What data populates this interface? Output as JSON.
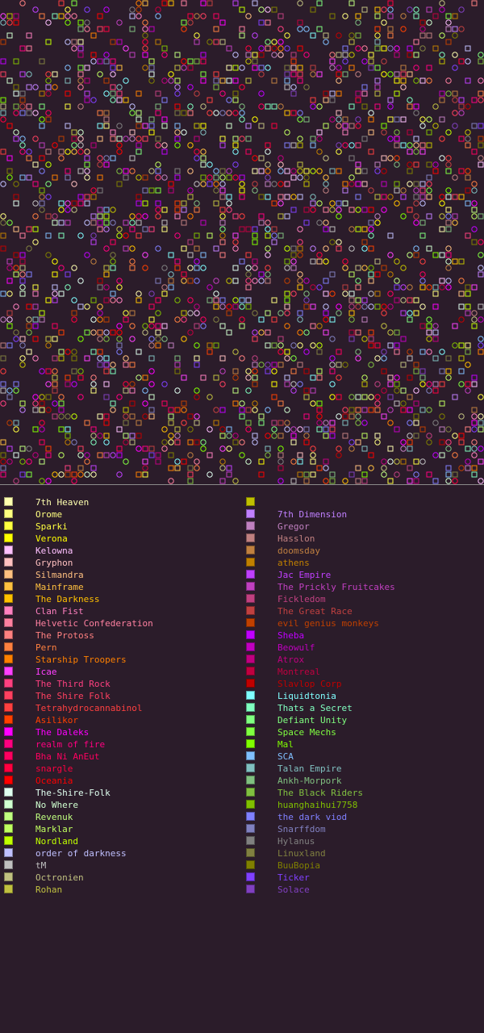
{
  "map": {
    "background": "#2b1c2a",
    "grid_columns": 75,
    "grid_rows": 75
  },
  "legend": {
    "left": [
      {
        "name": "7th Heaven",
        "color": "#ffffb0"
      },
      {
        "name": "Orome",
        "color": "#ffff80"
      },
      {
        "name": "Sparki",
        "color": "#ffff40"
      },
      {
        "name": "Verona",
        "color": "#ffff00"
      },
      {
        "name": "Kelowna",
        "color": "#ffc0ff"
      },
      {
        "name": "Gryphon",
        "color": "#ffc0c0"
      },
      {
        "name": "Silmandra",
        "color": "#ffc080"
      },
      {
        "name": "Mainframe",
        "color": "#ffc040"
      },
      {
        "name": "The Darkness",
        "color": "#ffc000"
      },
      {
        "name": "Clan Fist",
        "color": "#ff80c0"
      },
      {
        "name": "Helvetic Confederation",
        "color": "#ff80a0"
      },
      {
        "name": "The Protoss",
        "color": "#ff8080"
      },
      {
        "name": "Pern",
        "color": "#ff8040"
      },
      {
        "name": "Starship Troopers",
        "color": "#ff8000"
      },
      {
        "name": "Icae",
        "color": "#ff40ff"
      },
      {
        "name": "The Third Rock",
        "color": "#ff4080"
      },
      {
        "name": "The Shire Folk",
        "color": "#ff4060"
      },
      {
        "name": "Tetrahydrocannabinol",
        "color": "#ff4040"
      },
      {
        "name": "Asilikor",
        "color": "#ff4000"
      },
      {
        "name": "The Daleks",
        "color": "#ff00ff"
      },
      {
        "name": "realm of fire",
        "color": "#ff0080"
      },
      {
        "name": "Bha Ni AnEut",
        "color": "#ff0060"
      },
      {
        "name": "snargle",
        "color": "#ff0040"
      },
      {
        "name": "Oceania",
        "color": "#ff0000"
      },
      {
        "name": "The-Shire-Folk",
        "color": "#e0fff0"
      },
      {
        "name": "No Where",
        "color": "#d0ffd0"
      },
      {
        "name": "Revenuk",
        "color": "#c0ff80"
      },
      {
        "name": "Marklar",
        "color": "#c0ff60"
      },
      {
        "name": "Nordland",
        "color": "#c0ff00"
      },
      {
        "name": "order of darkness",
        "color": "#c0c0ff"
      },
      {
        "name": "tM",
        "color": "#c0c0c0"
      },
      {
        "name": "Octronien",
        "color": "#c0c080"
      },
      {
        "name": "Rohan",
        "color": "#c0c040"
      }
    ],
    "right": [
      {
        "name": "",
        "color": "#c0c000"
      },
      {
        "name": "7th Dimension",
        "color": "#c080ff"
      },
      {
        "name": "Gregor",
        "color": "#c080c0"
      },
      {
        "name": "Hasslon",
        "color": "#c08080"
      },
      {
        "name": "doomsday",
        "color": "#c08040"
      },
      {
        "name": "athens",
        "color": "#c08000"
      },
      {
        "name": "Jac Empire",
        "color": "#c040ff"
      },
      {
        "name": "The Prickly Fruitcakes",
        "color": "#c040c0"
      },
      {
        "name": "Fickledom",
        "color": "#c04080"
      },
      {
        "name": "The Great Race",
        "color": "#c04040"
      },
      {
        "name": "evil genius monkeys",
        "color": "#c04000"
      },
      {
        "name": "Sheba",
        "color": "#c000ff"
      },
      {
        "name": "Beowulf",
        "color": "#c000c0"
      },
      {
        "name": "Atrox",
        "color": "#c00080"
      },
      {
        "name": "Montreal",
        "color": "#c00040"
      },
      {
        "name": "Slavlop Corp",
        "color": "#c00000"
      },
      {
        "name": "Liquidtonia",
        "color": "#80ffff"
      },
      {
        "name": "Thats a Secret",
        "color": "#80ffc0"
      },
      {
        "name": "Defiant Unity",
        "color": "#80ff80"
      },
      {
        "name": "Space Mechs",
        "color": "#80ff40"
      },
      {
        "name": "Mal",
        "color": "#80ff00"
      },
      {
        "name": "SCA",
        "color": "#80c0ff"
      },
      {
        "name": "Talan Empire",
        "color": "#80c0c0"
      },
      {
        "name": "Ankh-Morpork",
        "color": "#80c080"
      },
      {
        "name": "The Black Riders",
        "color": "#80c040"
      },
      {
        "name": "huanghaihui7758",
        "color": "#80c000"
      },
      {
        "name": "the dark viod",
        "color": "#8080ff"
      },
      {
        "name": "Snarffdom",
        "color": "#8080c0"
      },
      {
        "name": "Hylanus",
        "color": "#808080"
      },
      {
        "name": "Linuxland",
        "color": "#808040"
      },
      {
        "name": "BuuBopia",
        "color": "#808000"
      },
      {
        "name": "Ticker",
        "color": "#8040ff"
      },
      {
        "name": "Solace",
        "color": "#8040c0"
      }
    ]
  }
}
